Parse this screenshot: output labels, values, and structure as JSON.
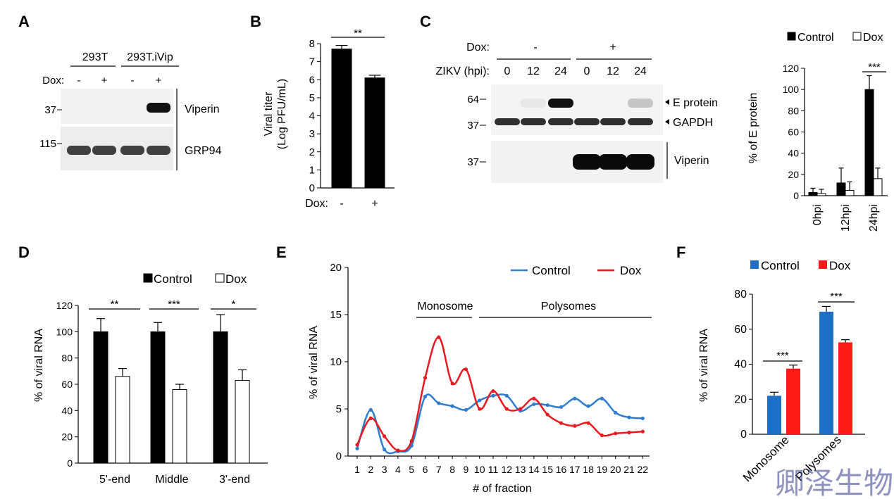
{
  "panels": {
    "A": {
      "letter": "A",
      "cell_lines": [
        "293T",
        "293T.iVip"
      ],
      "dox_label": "Dox:",
      "dox_states": [
        "-",
        "+",
        "-",
        "+"
      ],
      "rows": [
        {
          "label": "Viperin",
          "marker": "37",
          "band_intensity": [
            0,
            0,
            0,
            1
          ]
        },
        {
          "label": "GRP94",
          "marker": "115",
          "band_intensity": [
            0.85,
            0.85,
            0.85,
            0.85
          ]
        }
      ]
    },
    "B": {
      "letter": "B",
      "ylabel_line1": "Viral titer",
      "ylabel_line2": "(Log PFU/mL)",
      "dox_label": "Dox:",
      "significance": "**"
    },
    "C": {
      "letter": "C",
      "dox_label": "Dox:",
      "dox_groups": [
        "-",
        "+"
      ],
      "zikv_label": "ZIKV (hpi):",
      "timepoints": [
        "0",
        "12",
        "24",
        "0",
        "12",
        "24"
      ],
      "markers": [
        "64",
        "37",
        "37"
      ],
      "bands": [
        "E protein",
        "GAPDH",
        "Viperin"
      ],
      "e_protein_intensity": [
        0,
        0.05,
        1,
        0,
        0,
        0.2
      ],
      "viperin_intensity": [
        0,
        0,
        0,
        1,
        1,
        1
      ]
    },
    "D": {
      "letter": "D"
    },
    "E": {
      "letter": "E",
      "region_monosome": "Monosome",
      "region_polysomes": "Polysomes"
    },
    "F": {
      "letter": "F"
    }
  },
  "chart_data": [
    {
      "id": "B",
      "type": "bar",
      "categories": [
        "-",
        "+"
      ],
      "values": [
        7.7,
        6.1
      ],
      "errors": [
        0.2,
        0.15
      ],
      "ylim": [
        0,
        8
      ],
      "yticks": [
        "0",
        "1",
        "2",
        "3",
        "4",
        "5",
        "6",
        "7",
        "8"
      ],
      "significance": [
        "**"
      ]
    },
    {
      "id": "C",
      "type": "bar",
      "ylabel": "% of E protein",
      "categories": [
        "0hpi",
        "12hpi",
        "24hpi"
      ],
      "series": [
        {
          "name": "Control",
          "values": [
            3,
            12,
            100
          ],
          "errors": [
            4,
            14,
            13
          ],
          "color": "#000000"
        },
        {
          "name": "Dox",
          "values": [
            2,
            5,
            16
          ],
          "errors": [
            4,
            8,
            10
          ],
          "color": "#ffffff"
        }
      ],
      "ylim": [
        0,
        120
      ],
      "yticks": [
        "0",
        "20",
        "40",
        "60",
        "80",
        "100",
        "120"
      ],
      "significance": [
        "",
        "",
        "***"
      ]
    },
    {
      "id": "D",
      "type": "bar",
      "ylabel": "% of viral RNA",
      "categories": [
        "5'-end",
        "Middle",
        "3'-end"
      ],
      "series": [
        {
          "name": "Control",
          "values": [
            100,
            100,
            100
          ],
          "errors": [
            10,
            7,
            13
          ],
          "color": "#000000"
        },
        {
          "name": "Dox",
          "values": [
            66,
            56,
            63
          ],
          "errors": [
            6,
            4,
            8
          ],
          "color": "#ffffff"
        }
      ],
      "ylim": [
        0,
        120
      ],
      "yticks": [
        "0",
        "20",
        "40",
        "60",
        "80",
        "100",
        "120"
      ],
      "significance": [
        "**",
        "***",
        "*"
      ]
    },
    {
      "id": "E",
      "type": "line",
      "ylabel": "% of viral RNA",
      "xlabel": "# of fraction",
      "x": [
        1,
        2,
        3,
        4,
        5,
        6,
        7,
        8,
        9,
        10,
        11,
        12,
        13,
        14,
        15,
        16,
        17,
        18,
        19,
        20,
        21,
        22
      ],
      "xticks": [
        "1",
        "2",
        "3",
        "4",
        "5",
        "6",
        "7",
        "8",
        "9",
        "10",
        "11",
        "12",
        "13",
        "14",
        "15",
        "16",
        "17",
        "18",
        "19",
        "20",
        "21",
        "22"
      ],
      "series": [
        {
          "name": "Control",
          "values": [
            0.8,
            4.9,
            0.7,
            0.5,
            1.1,
            6.3,
            5.6,
            5.3,
            4.9,
            5.9,
            6.4,
            6.4,
            4.8,
            5.5,
            5.4,
            5.2,
            6.1,
            5.3,
            6.1,
            4.6,
            4.1,
            4.0
          ],
          "color": "#2f7dcd"
        },
        {
          "name": "Dox",
          "values": [
            1.2,
            4.0,
            2.1,
            0.6,
            1.6,
            8.3,
            12.6,
            7.7,
            9.2,
            5.0,
            6.9,
            5.0,
            5.0,
            6.1,
            4.4,
            3.5,
            3.2,
            3.5,
            2.2,
            2.4,
            2.5,
            2.6
          ],
          "color": "#e8191f"
        }
      ],
      "ylim": [
        0,
        20
      ],
      "yticks": [
        "0",
        "5",
        "10",
        "15",
        "20"
      ]
    },
    {
      "id": "F",
      "type": "bar",
      "ylabel": "% of viral RNA",
      "categories": [
        "Monosome",
        "Polysomes"
      ],
      "series": [
        {
          "name": "Control",
          "values": [
            22,
            70
          ],
          "errors": [
            2,
            3
          ],
          "color": "#1f6fc6"
        },
        {
          "name": "Dox",
          "values": [
            37.5,
            52.5
          ],
          "errors": [
            2,
            1.5
          ],
          "color": "#ff1a1a"
        }
      ],
      "ylim": [
        0,
        80
      ],
      "yticks": [
        "0",
        "20",
        "40",
        "60",
        "80"
      ],
      "significance": [
        "***",
        "***"
      ]
    }
  ],
  "watermark": "卿泽生物"
}
